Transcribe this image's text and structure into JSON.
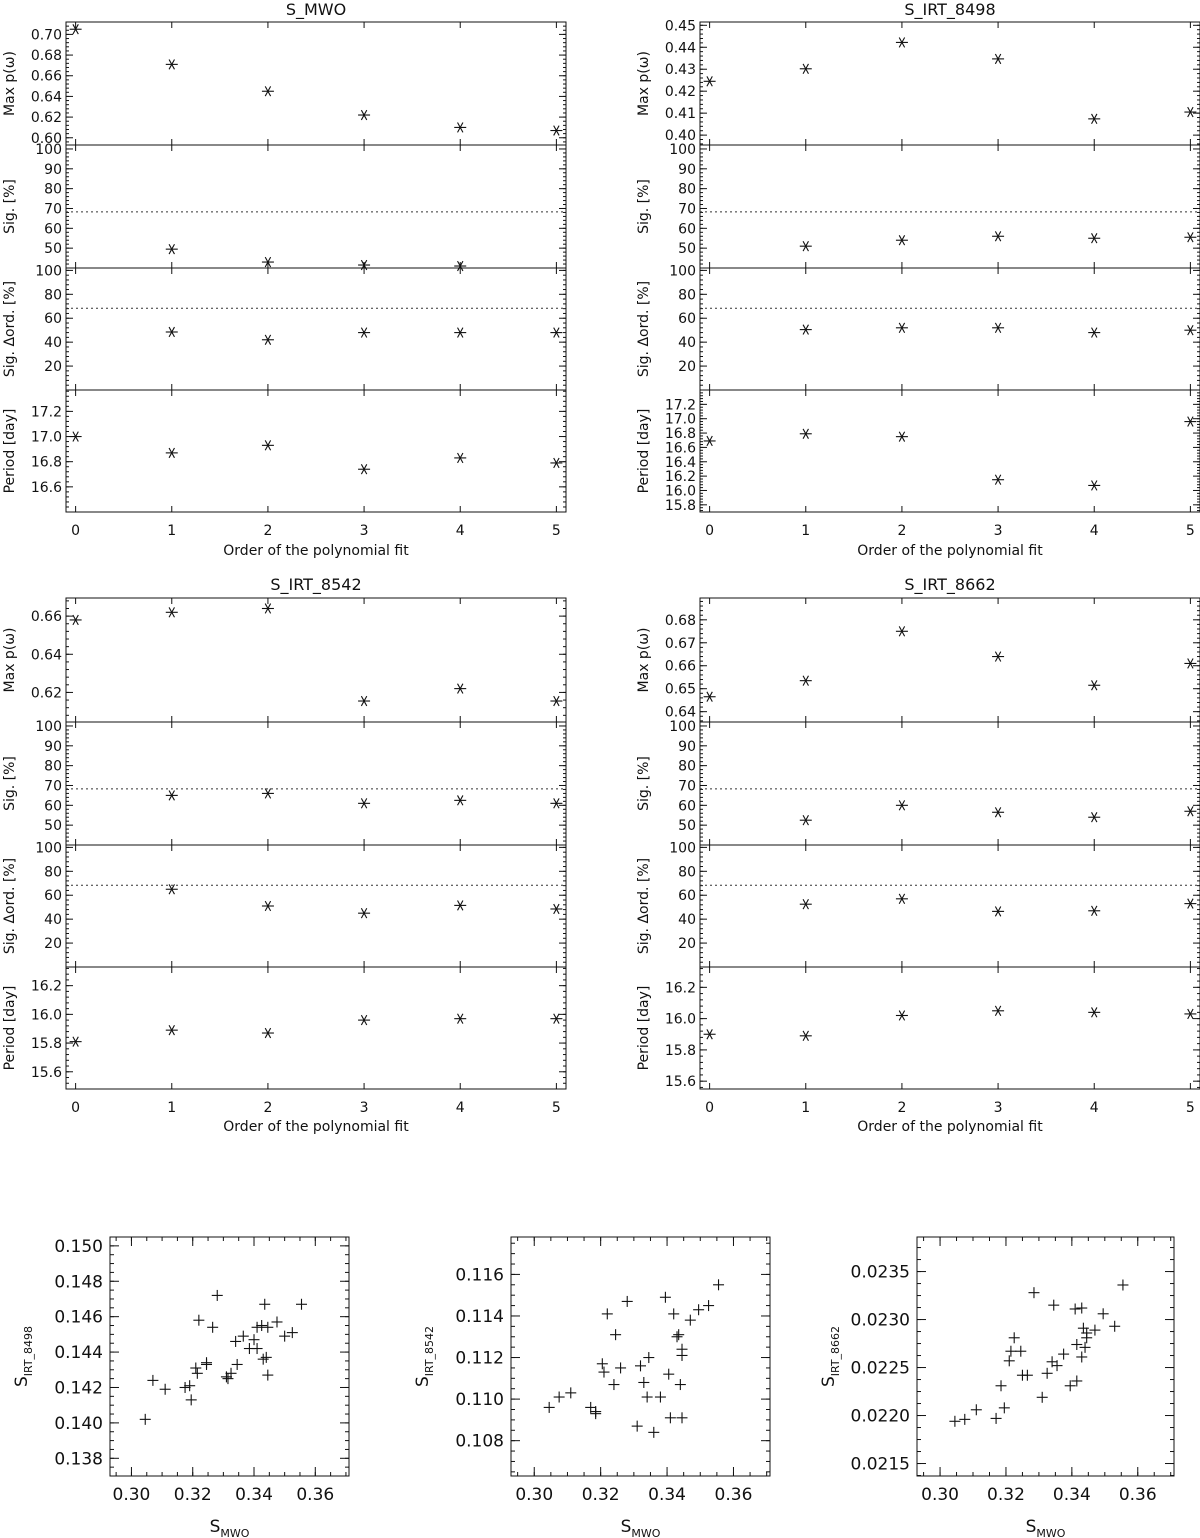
{
  "chart_data": [
    {
      "type": "scatter",
      "title": "S_MWO",
      "xlabel": "Order of the polynomial fit",
      "x_ticks": [
        "0",
        "1",
        "2",
        "3",
        "4",
        "5"
      ],
      "xlim": [
        -0.1,
        5.1
      ],
      "marker": "asterisk",
      "panels": [
        {
          "ylabel": "Max p(ω)",
          "ylim": [
            0.593,
            0.712
          ],
          "y_ticks": [
            0.6,
            0.62,
            0.64,
            0.66,
            0.68,
            0.7
          ],
          "y_tick_labels": [
            "0.60",
            "0.62",
            "0.64",
            "0.66",
            "0.68",
            "0.70"
          ],
          "y": [
            0.705,
            0.671,
            0.645,
            0.622,
            0.61,
            0.607
          ]
        },
        {
          "ylabel": "Sig. [%]",
          "ylim": [
            40,
            102
          ],
          "y_ticks": [
            50,
            60,
            70,
            80,
            90,
            100
          ],
          "y_tick_labels": [
            "50",
            "60",
            "70",
            "80",
            "90",
            "100"
          ],
          "reference_line": 68.3,
          "y": [
            null,
            49.5,
            43,
            41.5,
            41,
            null
          ]
        },
        {
          "ylabel": "Sig. Δord. [%]",
          "ylim": [
            0,
            102
          ],
          "y_ticks": [
            20,
            40,
            60,
            80,
            100
          ],
          "y_tick_labels": [
            "20",
            "40",
            "60",
            "80",
            "100"
          ],
          "reference_line": 68.3,
          "y": [
            null,
            48.5,
            42,
            48,
            48,
            48
          ]
        },
        {
          "ylabel": "Period [day]",
          "ylim": [
            16.4,
            17.37
          ],
          "y_ticks": [
            16.6,
            16.8,
            17.0,
            17.2
          ],
          "y_tick_labels": [
            "16.6",
            "16.8",
            "17.0",
            "17.2"
          ],
          "y": [
            17.0,
            16.87,
            16.93,
            16.74,
            16.83,
            16.79
          ]
        }
      ]
    },
    {
      "type": "scatter",
      "title": "S_IRT_8498",
      "xlabel": "Order of the polynomial fit",
      "x_ticks": [
        "0",
        "1",
        "2",
        "3",
        "4",
        "5"
      ],
      "xlim": [
        -0.1,
        5.1
      ],
      "marker": "asterisk",
      "panels": [
        {
          "ylabel": "Max p(ω)",
          "ylim": [
            0.3955,
            0.4515
          ],
          "y_ticks": [
            0.4,
            0.41,
            0.42,
            0.43,
            0.44,
            0.45
          ],
          "y_tick_labels": [
            "0.40",
            "0.41",
            "0.42",
            "0.43",
            "0.44",
            "0.45"
          ],
          "y": [
            0.4245,
            0.4302,
            0.4422,
            0.4347,
            0.4074,
            0.4105
          ]
        },
        {
          "ylabel": "Sig. [%]",
          "ylim": [
            40,
            102
          ],
          "y_ticks": [
            50,
            60,
            70,
            80,
            90,
            100
          ],
          "y_tick_labels": [
            "50",
            "60",
            "70",
            "80",
            "90",
            "100"
          ],
          "reference_line": 68.3,
          "y": [
            null,
            51,
            54,
            56,
            55,
            55.5
          ]
        },
        {
          "ylabel": "Sig. Δord. [%]",
          "ylim": [
            0,
            102
          ],
          "y_ticks": [
            20,
            40,
            60,
            80,
            100
          ],
          "y_tick_labels": [
            "20",
            "40",
            "60",
            "80",
            "100"
          ],
          "reference_line": 68.3,
          "y": [
            null,
            50.5,
            52,
            52,
            48,
            50
          ]
        },
        {
          "ylabel": "Period [day]",
          "ylim": [
            15.7,
            17.4
          ],
          "y_ticks": [
            15.8,
            16.0,
            16.2,
            16.4,
            16.6,
            16.8,
            17.0,
            17.2
          ],
          "y_tick_labels": [
            "15.8",
            "16.0",
            "16.2",
            "16.4",
            "16.6",
            "16.8",
            "17.0",
            "17.2"
          ],
          "y": [
            16.69,
            16.79,
            16.75,
            16.15,
            16.07,
            16.96
          ]
        }
      ]
    },
    {
      "type": "scatter",
      "title": "S_IRT_8542",
      "xlabel": "Order of the polynomial fit",
      "x_ticks": [
        "0",
        "1",
        "2",
        "3",
        "4",
        "5"
      ],
      "xlim": [
        -0.1,
        5.1
      ],
      "marker": "asterisk",
      "panels": [
        {
          "ylabel": "Max p(ω)",
          "ylim": [
            0.6045,
            0.6695
          ],
          "y_ticks": [
            0.62,
            0.64,
            0.66
          ],
          "y_tick_labels": [
            "0.62",
            "0.64",
            "0.66"
          ],
          "y": [
            0.658,
            0.662,
            0.664,
            0.6155,
            0.622,
            0.6155
          ]
        },
        {
          "ylabel": "Sig. [%]",
          "ylim": [
            40,
            102
          ],
          "y_ticks": [
            50,
            60,
            70,
            80,
            90,
            100
          ],
          "y_tick_labels": [
            "50",
            "60",
            "70",
            "80",
            "90",
            "100"
          ],
          "reference_line": 68.3,
          "y": [
            null,
            65,
            66,
            61,
            62.5,
            61
          ]
        },
        {
          "ylabel": "Sig. Δord. [%]",
          "ylim": [
            0,
            102
          ],
          "y_ticks": [
            20,
            40,
            60,
            80,
            100
          ],
          "y_tick_labels": [
            "20",
            "40",
            "60",
            "80",
            "100"
          ],
          "reference_line": 68.3,
          "y": [
            null,
            65,
            51,
            45,
            51.5,
            48.5
          ]
        },
        {
          "ylabel": "Period [day]",
          "ylim": [
            15.48,
            16.33
          ],
          "y_ticks": [
            15.6,
            15.8,
            16.0,
            16.2
          ],
          "y_tick_labels": [
            "15.6",
            "15.8",
            "16.0",
            "16.2"
          ],
          "y": [
            15.81,
            15.89,
            15.87,
            15.96,
            15.97,
            15.97
          ]
        }
      ]
    },
    {
      "type": "scatter",
      "title": "S_IRT_8662",
      "xlabel": "Order of the polynomial fit",
      "x_ticks": [
        "0",
        "1",
        "2",
        "3",
        "4",
        "5"
      ],
      "xlim": [
        -0.1,
        5.1
      ],
      "marker": "asterisk",
      "panels": [
        {
          "ylabel": "Max p(ω)",
          "ylim": [
            0.6355,
            0.6895
          ],
          "y_ticks": [
            0.64,
            0.65,
            0.66,
            0.67,
            0.68
          ],
          "y_tick_labels": [
            "0.64",
            "0.65",
            "0.66",
            "0.67",
            "0.68"
          ],
          "y": [
            0.6465,
            0.6535,
            0.675,
            0.664,
            0.6515,
            0.661
          ]
        },
        {
          "ylabel": "Sig. [%]",
          "ylim": [
            40,
            102
          ],
          "y_ticks": [
            50,
            60,
            70,
            80,
            90,
            100
          ],
          "y_tick_labels": [
            "50",
            "60",
            "70",
            "80",
            "90",
            "100"
          ],
          "reference_line": 68.3,
          "y": [
            null,
            52.5,
            60,
            56.5,
            54,
            57
          ]
        },
        {
          "ylabel": "Sig. Δord. [%]",
          "ylim": [
            0,
            102
          ],
          "y_ticks": [
            20,
            40,
            60,
            80,
            100
          ],
          "y_tick_labels": [
            "20",
            "40",
            "60",
            "80",
            "100"
          ],
          "reference_line": 68.3,
          "y": [
            null,
            52.5,
            57,
            46.5,
            47,
            53
          ]
        },
        {
          "ylabel": "Period [day]",
          "ylim": [
            15.55,
            16.33
          ],
          "y_ticks": [
            15.6,
            15.8,
            16.0,
            16.2
          ],
          "y_tick_labels": [
            "15.6",
            "15.8",
            "16.0",
            "16.2"
          ],
          "y": [
            15.9,
            15.89,
            16.02,
            16.05,
            16.04,
            16.03
          ]
        }
      ]
    },
    {
      "type": "scatter",
      "title": "",
      "marker": "plus",
      "xlabel": {
        "main": "S",
        "sub": "MWO"
      },
      "ylabel": {
        "main": "S",
        "sub": "IRT_8498"
      },
      "xlim": [
        0.293,
        0.371
      ],
      "ylim": [
        0.137,
        0.1505
      ],
      "x_ticks": [
        0.3,
        0.32,
        0.34,
        0.36
      ],
      "x_tick_labels": [
        "0.30",
        "0.32",
        "0.34",
        "0.36"
      ],
      "y_ticks": [
        0.138,
        0.14,
        0.142,
        0.144,
        0.146,
        0.148,
        0.15
      ],
      "y_tick_labels": [
        "0.138",
        "0.140",
        "0.142",
        "0.144",
        "0.146",
        "0.148",
        "0.150"
      ],
      "points": [
        [
          0.3045,
          0.1402
        ],
        [
          0.307,
          0.1424
        ],
        [
          0.311,
          0.1419
        ],
        [
          0.3175,
          0.142
        ],
        [
          0.319,
          0.1421
        ],
        [
          0.3195,
          0.1413
        ],
        [
          0.321,
          0.1431
        ],
        [
          0.3215,
          0.1428
        ],
        [
          0.322,
          0.1458
        ],
        [
          0.3245,
          0.1434
        ],
        [
          0.3245,
          0.1433
        ],
        [
          0.3265,
          0.1454
        ],
        [
          0.328,
          0.1472
        ],
        [
          0.331,
          0.1426
        ],
        [
          0.3315,
          0.1425
        ],
        [
          0.3325,
          0.1428
        ],
        [
          0.334,
          0.1446
        ],
        [
          0.3345,
          0.1433
        ],
        [
          0.3365,
          0.1449
        ],
        [
          0.3385,
          0.1442
        ],
        [
          0.34,
          0.1447
        ],
        [
          0.341,
          0.1442
        ],
        [
          0.341,
          0.1454
        ],
        [
          0.3425,
          0.1455
        ],
        [
          0.343,
          0.1436
        ],
        [
          0.3435,
          0.1467
        ],
        [
          0.344,
          0.1437
        ],
        [
          0.3445,
          0.1454
        ],
        [
          0.3445,
          0.1427
        ],
        [
          0.3475,
          0.1457
        ],
        [
          0.35,
          0.1449
        ],
        [
          0.3525,
          0.1451
        ],
        [
          0.3555,
          0.1467
        ]
      ]
    },
    {
      "type": "scatter",
      "title": "",
      "marker": "plus",
      "xlabel": {
        "main": "S",
        "sub": "MWO"
      },
      "ylabel": {
        "main": "S",
        "sub": "IRT_8542"
      },
      "xlim": [
        0.293,
        0.371
      ],
      "ylim": [
        0.1063,
        0.1178
      ],
      "x_ticks": [
        0.3,
        0.32,
        0.34,
        0.36
      ],
      "x_tick_labels": [
        "0.30",
        "0.32",
        "0.34",
        "0.36"
      ],
      "y_ticks": [
        0.108,
        0.11,
        0.112,
        0.114,
        0.116
      ],
      "y_tick_labels": [
        "0.108",
        "0.110",
        "0.112",
        "0.114",
        "0.116"
      ],
      "points": [
        [
          0.3045,
          0.1096
        ],
        [
          0.3075,
          0.1101
        ],
        [
          0.311,
          0.1103
        ],
        [
          0.317,
          0.1096
        ],
        [
          0.3185,
          0.1094
        ],
        [
          0.3185,
          0.1093
        ],
        [
          0.3205,
          0.1117
        ],
        [
          0.321,
          0.1113
        ],
        [
          0.322,
          0.1141
        ],
        [
          0.324,
          0.1107
        ],
        [
          0.3245,
          0.1131
        ],
        [
          0.326,
          0.1115
        ],
        [
          0.328,
          0.1147
        ],
        [
          0.331,
          0.1087
        ],
        [
          0.332,
          0.1116
        ],
        [
          0.333,
          0.1108
        ],
        [
          0.334,
          0.1101
        ],
        [
          0.3345,
          0.112
        ],
        [
          0.336,
          0.1084
        ],
        [
          0.338,
          0.1101
        ],
        [
          0.3395,
          0.1149
        ],
        [
          0.3405,
          0.1112
        ],
        [
          0.341,
          0.1091
        ],
        [
          0.342,
          0.1141
        ],
        [
          0.343,
          0.113
        ],
        [
          0.3435,
          0.1131
        ],
        [
          0.344,
          0.1107
        ],
        [
          0.3445,
          0.1091
        ],
        [
          0.3445,
          0.1124
        ],
        [
          0.3445,
          0.1121
        ],
        [
          0.347,
          0.1138
        ],
        [
          0.3495,
          0.1143
        ],
        [
          0.3525,
          0.1145
        ],
        [
          0.3555,
          0.1155
        ]
      ]
    },
    {
      "type": "scatter",
      "title": "",
      "marker": "plus",
      "xlabel": {
        "main": "S",
        "sub": "MWO"
      },
      "ylabel": {
        "main": "S",
        "sub": "IRT_8662"
      },
      "xlim": [
        0.293,
        0.371
      ],
      "ylim": [
        0.02137,
        0.02386
      ],
      "x_ticks": [
        0.3,
        0.32,
        0.34,
        0.36
      ],
      "x_tick_labels": [
        "0.30",
        "0.32",
        "0.34",
        "0.36"
      ],
      "y_ticks": [
        0.0215,
        0.022,
        0.0225,
        0.023,
        0.0235
      ],
      "y_tick_labels": [
        "0.0215",
        "0.0220",
        "0.0225",
        "0.0230",
        "0.0235"
      ],
      "points": [
        [
          0.3045,
          0.02194
        ],
        [
          0.3075,
          0.02196
        ],
        [
          0.311,
          0.02206
        ],
        [
          0.317,
          0.02197
        ],
        [
          0.3185,
          0.02231
        ],
        [
          0.3195,
          0.02208
        ],
        [
          0.321,
          0.02257
        ],
        [
          0.3215,
          0.02267
        ],
        [
          0.3225,
          0.02281
        ],
        [
          0.3245,
          0.02267
        ],
        [
          0.325,
          0.02242
        ],
        [
          0.3265,
          0.02242
        ],
        [
          0.3285,
          0.02328
        ],
        [
          0.331,
          0.02219
        ],
        [
          0.3325,
          0.02244
        ],
        [
          0.334,
          0.02256
        ],
        [
          0.3345,
          0.02315
        ],
        [
          0.3355,
          0.02252
        ],
        [
          0.3375,
          0.02264
        ],
        [
          0.3395,
          0.02231
        ],
        [
          0.341,
          0.02311
        ],
        [
          0.3415,
          0.02274
        ],
        [
          0.3415,
          0.02236
        ],
        [
          0.343,
          0.02312
        ],
        [
          0.343,
          0.02261
        ],
        [
          0.3435,
          0.02291
        ],
        [
          0.344,
          0.02271
        ],
        [
          0.3445,
          0.02286
        ],
        [
          0.3445,
          0.02281
        ],
        [
          0.347,
          0.02289
        ],
        [
          0.3495,
          0.02306
        ],
        [
          0.353,
          0.02293
        ],
        [
          0.3555,
          0.02336
        ]
      ]
    }
  ]
}
